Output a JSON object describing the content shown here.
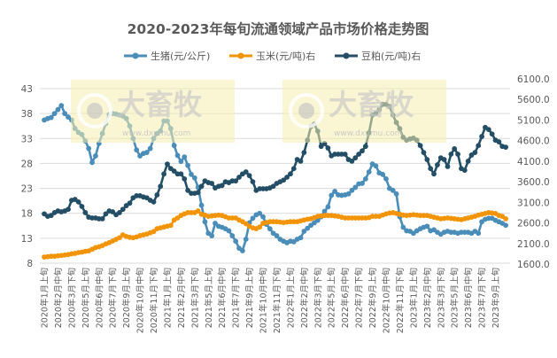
{
  "chart_data": {
    "type": "line",
    "title": "2020-2023年每旬流通领域产品市场价格走势图",
    "legend_position": "top",
    "grid": true,
    "tick_labels": [
      "2020年1月上旬",
      "2020年2月中旬",
      "2020年3月下旬",
      "2020年5月上旬",
      "2020年6月中旬",
      "2020年7月下旬",
      "2020年9月上旬",
      "2020年10月中旬",
      "2020年11月下旬",
      "2021年1月上旬",
      "2021年2月中旬",
      "2021年3月下旬",
      "2021年5月上旬",
      "2021年6月中旬",
      "2021年7月下旬",
      "2021年9月上旬",
      "2021年10月中旬",
      "2021年11月下旬",
      "2022年1月上旬",
      "2022年2月中旬",
      "2022年3月下旬",
      "2022年5月上旬",
      "2022年6月中旬",
      "2022年7月下旬",
      "2022年9月上旬",
      "2022年10月中旬",
      "2022年11月下旬",
      "2023年1月上旬",
      "2023年2月中旬",
      "2023年3月下旬",
      "2023年5月上旬",
      "2023年6月中旬",
      "2023年7月下旬",
      "2023年9月上旬"
    ],
    "y_left": {
      "min": 8,
      "max": 43,
      "step": 5,
      "ticks": [
        "8",
        "13",
        "18",
        "23",
        "28",
        "33",
        "38",
        "43"
      ]
    },
    "y_right": {
      "min": 1600,
      "max": 6100,
      "step": 500,
      "ticks": [
        "1600.0",
        "2100.0",
        "2600.0",
        "3100.0",
        "3600.0",
        "4100.0",
        "4600.0",
        "5100.0",
        "5600.0",
        "6100.0"
      ]
    },
    "series": [
      {
        "name": "生猪(元/公斤)",
        "axis": "left",
        "color": "#4a8db8",
        "values": [
          36.7,
          37.0,
          37.2,
          38.0,
          38.8,
          39.6,
          38.0,
          37.3,
          36.7,
          35.0,
          34.2,
          33.8,
          32.5,
          31.0,
          28.2,
          29.5,
          32.0,
          34.0,
          36.0,
          37.8,
          38.0,
          37.9,
          37.7,
          37.5,
          37.0,
          35.5,
          33.0,
          30.7,
          29.5,
          30.0,
          30.2,
          31.0,
          33.0,
          34.0,
          34.5,
          36.5,
          36.5,
          35.0,
          31.6,
          29.6,
          28.4,
          29.3,
          27.6,
          25.8,
          25.1,
          23.2,
          19.6,
          16.3,
          14.0,
          13.5,
          16.0,
          15.4,
          15.2,
          14.9,
          14.5,
          13.5,
          12.4,
          11.0,
          10.5,
          12.8,
          16.1,
          17.0,
          17.7,
          18.0,
          17.3,
          15.8,
          14.9,
          14.0,
          13.5,
          12.8,
          12.4,
          12.1,
          12.4,
          12.3,
          12.8,
          13.1,
          14.4,
          15.0,
          15.6,
          16.1,
          16.6,
          17.3,
          18.4,
          19.3,
          21.6,
          22.4,
          21.7,
          21.6,
          21.7,
          21.9,
          22.6,
          23.2,
          23.9,
          24.0,
          24.9,
          26.3,
          27.9,
          27.5,
          26.1,
          25.8,
          24.9,
          23.0,
          22.6,
          21.9,
          17.3,
          15.2,
          14.5,
          14.4,
          14.0,
          14.5,
          14.9,
          15.2,
          15.4,
          14.5,
          14.7,
          14.2,
          13.8,
          14.2,
          14.4,
          14.2,
          14.2,
          14.0,
          14.2,
          14.2,
          14.2,
          14.0,
          14.4,
          14.0,
          16.3,
          16.8,
          17.0,
          17.0,
          16.6,
          16.3,
          16.0,
          15.6
        ]
      },
      {
        "name": "玉米(元/吨)右",
        "axis": "right",
        "color": "#f29407",
        "values": [
          1770,
          1780,
          1790,
          1790,
          1800,
          1810,
          1820,
          1830,
          1850,
          1860,
          1880,
          1890,
          1910,
          1920,
          1960,
          2000,
          2020,
          2050,
          2090,
          2120,
          2160,
          2200,
          2240,
          2310,
          2270,
          2250,
          2240,
          2260,
          2290,
          2310,
          2330,
          2360,
          2390,
          2460,
          2480,
          2500,
          2520,
          2540,
          2670,
          2720,
          2780,
          2820,
          2850,
          2850,
          2850,
          2890,
          2810,
          2790,
          2760,
          2770,
          2780,
          2790,
          2780,
          2750,
          2720,
          2720,
          2720,
          2670,
          2630,
          2580,
          2520,
          2480,
          2460,
          2500,
          2590,
          2610,
          2630,
          2630,
          2630,
          2620,
          2610,
          2620,
          2630,
          2630,
          2630,
          2650,
          2670,
          2690,
          2700,
          2730,
          2760,
          2770,
          2780,
          2780,
          2780,
          2770,
          2760,
          2740,
          2720,
          2720,
          2720,
          2720,
          2720,
          2720,
          2720,
          2730,
          2760,
          2760,
          2760,
          2790,
          2820,
          2840,
          2850,
          2830,
          2810,
          2790,
          2780,
          2790,
          2800,
          2790,
          2780,
          2780,
          2780,
          2760,
          2740,
          2720,
          2700,
          2710,
          2720,
          2710,
          2700,
          2690,
          2680,
          2700,
          2720,
          2740,
          2760,
          2790,
          2810,
          2830,
          2850,
          2840,
          2830,
          2780,
          2760,
          2700
        ]
      },
      {
        "name": "豆粕(元/吨)右",
        "axis": "right",
        "color": "#234e66",
        "values": [
          2820,
          2760,
          2780,
          2850,
          2890,
          2870,
          2890,
          2930,
          3150,
          3170,
          3110,
          3000,
          2850,
          2740,
          2720,
          2720,
          2700,
          2700,
          2820,
          2890,
          2870,
          2800,
          2850,
          2930,
          3020,
          3080,
          3210,
          3260,
          3260,
          3230,
          3210,
          3150,
          3110,
          3280,
          3490,
          3790,
          4030,
          3920,
          3860,
          3790,
          3790,
          3670,
          3390,
          3320,
          3320,
          3340,
          3490,
          3620,
          3580,
          3560,
          3450,
          3490,
          3510,
          3600,
          3580,
          3620,
          3620,
          3710,
          3790,
          3840,
          3750,
          3600,
          3390,
          3430,
          3430,
          3430,
          3450,
          3490,
          3560,
          3600,
          3640,
          3710,
          3790,
          3920,
          4140,
          4100,
          4310,
          4610,
          4940,
          5000,
          4830,
          4460,
          4530,
          4420,
          4230,
          4270,
          4270,
          4270,
          4270,
          4140,
          4100,
          4180,
          4270,
          4350,
          4460,
          4790,
          5220,
          5260,
          5350,
          5480,
          5480,
          5430,
          5220,
          5040,
          4890,
          4680,
          4610,
          4640,
          4660,
          4610,
          4480,
          4310,
          4140,
          3920,
          3790,
          4010,
          4180,
          4140,
          3970,
          4270,
          4400,
          4270,
          3920,
          3880,
          4100,
          4250,
          4310,
          4480,
          4700,
          4920,
          4870,
          4760,
          4610,
          4570,
          4460,
          4440
        ]
      }
    ]
  },
  "watermark": {
    "logo_text": "大畜牧",
    "url_text": "www.dxumu.com",
    "color": "#f5eeb0"
  }
}
